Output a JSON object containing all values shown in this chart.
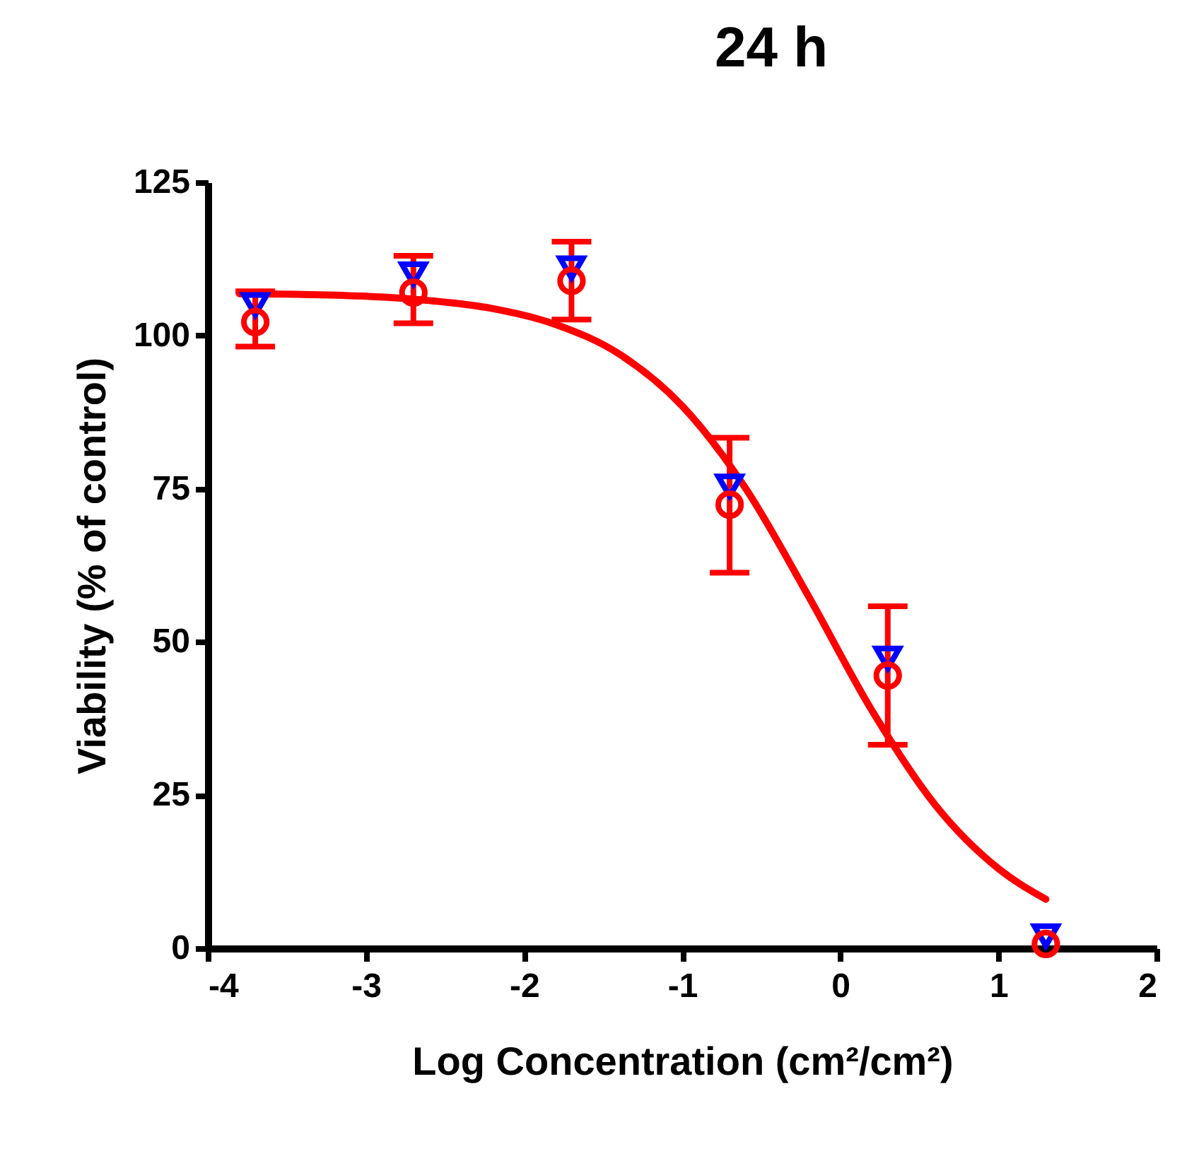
{
  "chart_data": {
    "type": "scatter",
    "title": "24 h",
    "xlabel": "Log Concentration (cm²/cm²)",
    "ylabel": "Viability (% of control)",
    "x": [
      -3.7,
      -2.7,
      -1.7,
      -0.7,
      0.3,
      1.3
    ],
    "xlim": [
      -4,
      2
    ],
    "xticks": [
      -4,
      -3,
      -2,
      -1,
      0,
      1,
      2
    ],
    "ylim": [
      0,
      125
    ],
    "yticks": [
      0,
      25,
      50,
      75,
      100,
      125
    ],
    "grid": false,
    "series": [
      {
        "color": "#0000ff",
        "marker": "triangle",
        "values": [
          105,
          110,
          111,
          75.4,
          47.3,
          2
        ]
      },
      {
        "color": "#ff0000",
        "marker": "circle",
        "values": [
          102.2,
          107,
          108.9,
          72.4,
          44.5,
          0.7
        ],
        "errors": [
          [
            98.2,
            107.2
          ],
          [
            102,
            113
          ],
          [
            102.6,
            115.3
          ],
          [
            61.3,
            83.3
          ],
          [
            33.2,
            55.8
          ],
          null
        ]
      },
      {
        "type": "line",
        "color": "#ff0000",
        "line_style": "solid",
        "x": [
          -3.8,
          -3.4,
          -3.0,
          -2.6,
          -2.2,
          -1.8,
          -1.4,
          -1.0,
          -0.6,
          -0.2,
          0.2,
          0.6,
          1.0,
          1.3
        ],
        "values": [
          106.8,
          106.7,
          106.4,
          105.7,
          104.4,
          101.8,
          97.0,
          88.5,
          75.1,
          57.4,
          38.8,
          23.4,
          13.0,
          8.0
        ]
      }
    ]
  }
}
